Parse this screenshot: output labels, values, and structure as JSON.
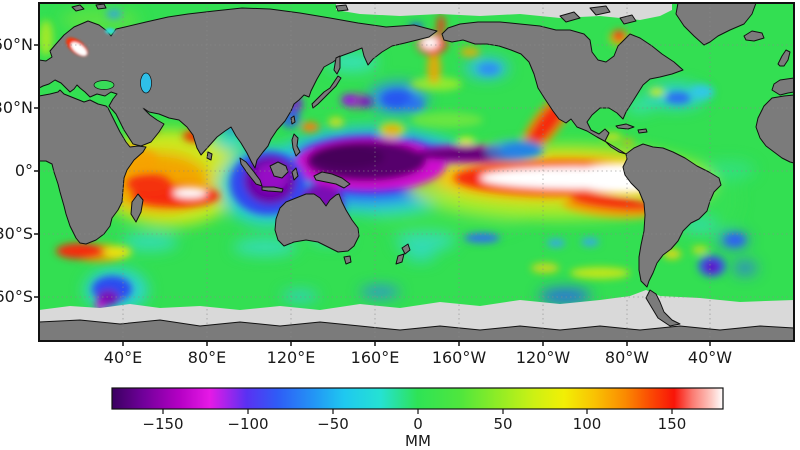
{
  "figure": {
    "type": "sea-level-anomaly-map",
    "units_label": "MM"
  },
  "axes": {
    "lat_ticks": [
      {
        "label": "60°N"
      },
      {
        "label": "30°N"
      },
      {
        "label": "0°"
      },
      {
        "label": "30°S"
      },
      {
        "label": "60°S"
      }
    ],
    "lon_ticks": [
      {
        "label": "40°E"
      },
      {
        "label": "80°E"
      },
      {
        "label": "120°E"
      },
      {
        "label": "160°E"
      },
      {
        "label": "160°W"
      },
      {
        "label": "120°W"
      },
      {
        "label": "80°W"
      },
      {
        "label": "40°W"
      }
    ]
  },
  "colorbar": {
    "label": "MM",
    "tick_labels": [
      "−150",
      "−100",
      "−50",
      "0",
      "50",
      "100",
      "150"
    ],
    "range_mm": [
      -180,
      180
    ],
    "gradient": [
      {
        "o": 0,
        "c": "#3a0060"
      },
      {
        "o": 5,
        "c": "#6f0099"
      },
      {
        "o": 11,
        "c": "#b400c4"
      },
      {
        "o": 16,
        "c": "#e619e6"
      },
      {
        "o": 22,
        "c": "#5a31f2"
      },
      {
        "o": 27,
        "c": "#2f5bf6"
      },
      {
        "o": 33,
        "c": "#2395f5"
      },
      {
        "o": 38,
        "c": "#1fc8f0"
      },
      {
        "o": 44,
        "c": "#25e2d2"
      },
      {
        "o": 50,
        "c": "#2ee356"
      },
      {
        "o": 57,
        "c": "#4fe63d"
      },
      {
        "o": 63,
        "c": "#8eec26"
      },
      {
        "o": 69,
        "c": "#ccf114"
      },
      {
        "o": 74,
        "c": "#f2ef05"
      },
      {
        "o": 79,
        "c": "#f9c203"
      },
      {
        "o": 84,
        "c": "#fa8a01"
      },
      {
        "o": 88,
        "c": "#fa4c03"
      },
      {
        "o": 92,
        "c": "#f91408"
      },
      {
        "o": 95,
        "c": "#fa7b72"
      },
      {
        "o": 98,
        "c": "#fdc6bf"
      },
      {
        "o": 100,
        "c": "#ffffff"
      }
    ]
  },
  "palette": {
    "land": "#7b7b7b",
    "ice": "#d9d9d9",
    "coastline": "#111111",
    "ocean_base": "#33df52",
    "frame": "#111111",
    "background": "#ffffff"
  },
  "chart_data": {
    "type": "heatmap",
    "title": "",
    "units": "mm",
    "projection": "equirectangular world map, 0°E–360°E, ~80°N–80°S",
    "colorbar_range": [
      -180,
      180
    ],
    "colorbar_ticks": [
      -150,
      -100,
      -50,
      0,
      50,
      100,
      150
    ],
    "lat_ticks": [
      "60°N",
      "30°N",
      "0°",
      "30°S",
      "60°S"
    ],
    "lon_ticks": [
      "40°E",
      "80°E",
      "120°E",
      "160°E",
      "160°W",
      "120°W",
      "80°W",
      "40°W"
    ],
    "grid": "dashed graticule every 40° longitude and 30° latitude",
    "legend_position": "horizontal colorbar below map",
    "notable_anomalies": [
      {
        "region": "Eastern equatorial Pacific warm tongue (170°W to South American coast, ±5° lat)",
        "value_mm": 170
      },
      {
        "region": "Western equatorial Pacific depression (130°E–175°E, 5°S–10°N)",
        "value_mm": -165
      },
      {
        "region": "Western tropical Indian Ocean high (50°E–75°E)",
        "value_mm": 150
      },
      {
        "region": "Eastern Indian Ocean off Sumatra/Java low",
        "value_mm": -130
      },
      {
        "region": "Bering Sea spot high",
        "value_mm": 160
      },
      {
        "region": "Baltic Sea spot high",
        "value_mm": 160
      },
      {
        "region": "South Atlantic ~40°S patch high",
        "value_mm": 130
      },
      {
        "region": "South Atlantic / Argentine basin ~55°S patches low",
        "value_mm": -120
      },
      {
        "region": "Mid-latitude North Pacific patches low",
        "value_mm": -90
      },
      {
        "region": "Global ocean background",
        "value_mm": 20
      }
    ]
  }
}
